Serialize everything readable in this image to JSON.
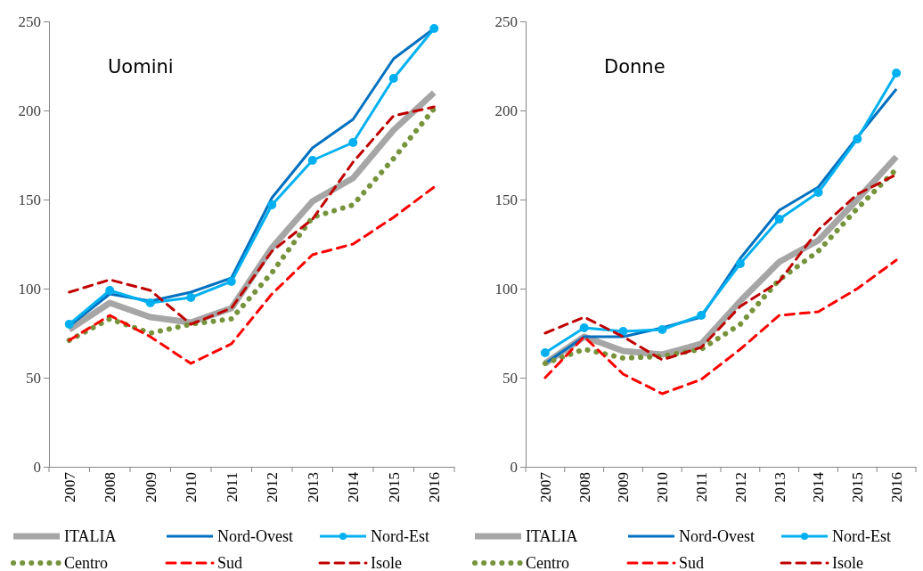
{
  "chart_data": [
    {
      "type": "line",
      "title": "Uomini",
      "categories": [
        "2007",
        "2008",
        "2009",
        "2010",
        "2011",
        "2012",
        "2013",
        "2014",
        "2015",
        "2016"
      ],
      "ylim": [
        0,
        250
      ],
      "yticks": [
        0,
        50,
        100,
        150,
        200,
        250
      ],
      "grid": false,
      "legend": "bottom",
      "series": [
        {
          "name": "ITALIA",
          "color": "#a6a6a6",
          "line_style": "solid",
          "marker": "none",
          "values": [
            77,
            92,
            84,
            81,
            89,
            123,
            149,
            162,
            189,
            210
          ]
        },
        {
          "name": "Nord-Ovest",
          "color": "#0070c0",
          "line_style": "solid",
          "marker": "none",
          "values": [
            79,
            97,
            93,
            98,
            106,
            151,
            179,
            195,
            229,
            246
          ]
        },
        {
          "name": "Nord-Est",
          "color": "#00b0f0",
          "line_style": "solid",
          "marker": "circle",
          "values": [
            80,
            99,
            92,
            95,
            104,
            147,
            172,
            182,
            218,
            246
          ]
        },
        {
          "name": "Centro",
          "color": "#77933c",
          "line_style": "dotted",
          "marker": "none",
          "values": [
            71,
            83,
            75,
            80,
            83,
            109,
            140,
            147,
            173,
            201
          ]
        },
        {
          "name": "Sud",
          "color": "#ff0000",
          "line_style": "dashed",
          "marker": "none",
          "values": [
            71,
            85,
            73,
            58,
            69,
            97,
            119,
            125,
            140,
            157
          ]
        },
        {
          "name": "Isole",
          "color": "#c00000",
          "line_style": "dashed",
          "marker": "none",
          "values": [
            98,
            105,
            99,
            80,
            89,
            121,
            139,
            171,
            197,
            202
          ]
        }
      ]
    },
    {
      "type": "line",
      "title": "Donne",
      "categories": [
        "2007",
        "2008",
        "2009",
        "2010",
        "2011",
        "2012",
        "2013",
        "2014",
        "2015",
        "2016"
      ],
      "ylim": [
        0,
        250
      ],
      "yticks": [
        0,
        50,
        100,
        150,
        200,
        250
      ],
      "grid": false,
      "legend": "bottom",
      "series": [
        {
          "name": "ITALIA",
          "color": "#a6a6a6",
          "line_style": "solid",
          "marker": "none",
          "values": [
            58,
            73,
            65,
            63,
            69,
            93,
            115,
            127,
            150,
            174
          ]
        },
        {
          "name": "Nord-Ovest",
          "color": "#0070c0",
          "line_style": "solid",
          "marker": "none",
          "values": [
            58,
            73,
            73,
            78,
            84,
            117,
            144,
            157,
            185,
            212
          ]
        },
        {
          "name": "Nord-Est",
          "color": "#00b0f0",
          "line_style": "solid",
          "marker": "circle",
          "values": [
            64,
            78,
            76,
            77,
            85,
            114,
            139,
            154,
            184,
            221
          ]
        },
        {
          "name": "Centro",
          "color": "#77933c",
          "line_style": "dotted",
          "marker": "none",
          "values": [
            58,
            66,
            61,
            62,
            66,
            80,
            105,
            121,
            145,
            167
          ]
        },
        {
          "name": "Sud",
          "color": "#ff0000",
          "line_style": "dashed",
          "marker": "none",
          "values": [
            50,
            73,
            52,
            41,
            49,
            66,
            85,
            87,
            100,
            116
          ]
        },
        {
          "name": "Isole",
          "color": "#c00000",
          "line_style": "dashed",
          "marker": "none",
          "values": [
            75,
            84,
            73,
            60,
            67,
            90,
            104,
            133,
            153,
            164
          ]
        }
      ]
    }
  ]
}
